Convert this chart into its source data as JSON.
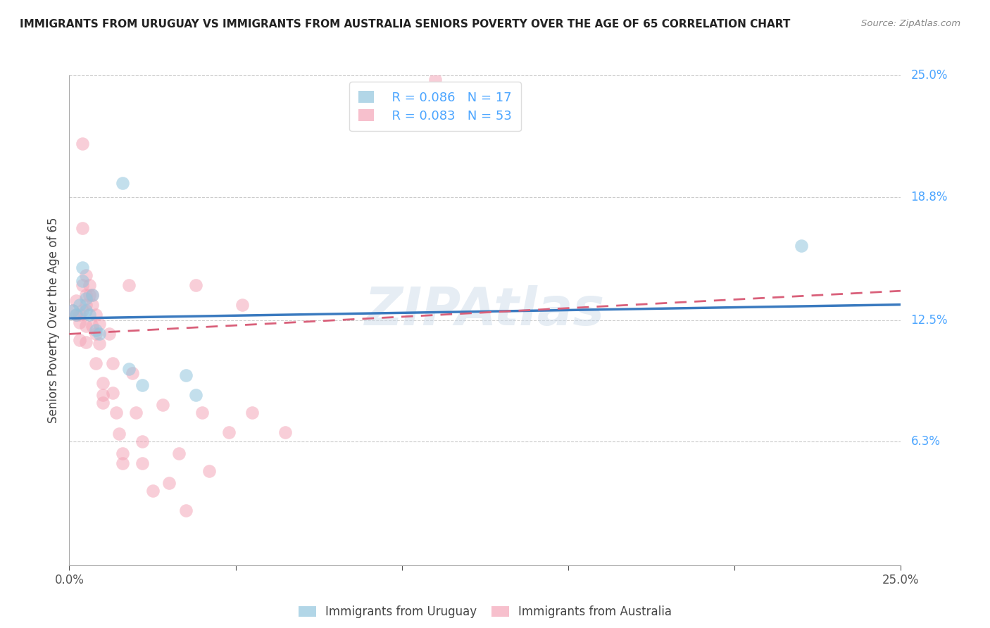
{
  "title": "IMMIGRANTS FROM URUGUAY VS IMMIGRANTS FROM AUSTRALIA SENIORS POVERTY OVER THE AGE OF 65 CORRELATION CHART",
  "source": "Source: ZipAtlas.com",
  "ylabel": "Seniors Poverty Over the Age of 65",
  "watermark": "ZIPAtlas",
  "xlim": [
    0.0,
    0.25
  ],
  "ylim": [
    0.0,
    0.25
  ],
  "ytick_labels": [
    "25.0%",
    "18.8%",
    "12.5%",
    "6.3%"
  ],
  "ytick_positions": [
    0.25,
    0.188,
    0.125,
    0.063
  ],
  "legend1_r": "R = 0.086",
  "legend1_n": "N = 17",
  "legend2_r": "R = 0.083",
  "legend2_n": "N = 53",
  "legend_color1": "#92c5de",
  "legend_color2": "#f4a6b8",
  "dot_color_uruguay": "#92c5de",
  "dot_color_australia": "#f4a6b8",
  "line_color_uruguay": "#3a7abf",
  "line_color_australia": "#d9607a",
  "grid_color": "#cccccc",
  "background_color": "#ffffff",
  "title_color": "#222222",
  "right_axis_color": "#4da6ff",
  "watermark_color": "#c8d8e8",
  "uruguay_x": [
    0.001,
    0.002,
    0.003,
    0.004,
    0.004,
    0.005,
    0.005,
    0.006,
    0.007,
    0.008,
    0.009,
    0.016,
    0.018,
    0.022,
    0.035,
    0.038,
    0.22
  ],
  "uruguay_y": [
    0.13,
    0.128,
    0.133,
    0.152,
    0.145,
    0.13,
    0.136,
    0.128,
    0.138,
    0.12,
    0.118,
    0.195,
    0.1,
    0.092,
    0.097,
    0.087,
    0.163
  ],
  "australia_x": [
    0.001,
    0.002,
    0.002,
    0.003,
    0.003,
    0.003,
    0.004,
    0.004,
    0.004,
    0.004,
    0.005,
    0.005,
    0.005,
    0.005,
    0.005,
    0.006,
    0.006,
    0.007,
    0.007,
    0.007,
    0.008,
    0.008,
    0.008,
    0.009,
    0.009,
    0.01,
    0.01,
    0.01,
    0.012,
    0.013,
    0.013,
    0.014,
    0.015,
    0.016,
    0.016,
    0.018,
    0.019,
    0.02,
    0.022,
    0.022,
    0.025,
    0.028,
    0.03,
    0.033,
    0.035,
    0.038,
    0.04,
    0.042,
    0.048,
    0.052,
    0.055,
    0.065,
    0.11
  ],
  "australia_y": [
    0.13,
    0.135,
    0.128,
    0.128,
    0.124,
    0.115,
    0.215,
    0.172,
    0.143,
    0.13,
    0.148,
    0.138,
    0.133,
    0.122,
    0.114,
    0.143,
    0.138,
    0.138,
    0.133,
    0.122,
    0.128,
    0.118,
    0.103,
    0.123,
    0.113,
    0.093,
    0.087,
    0.083,
    0.118,
    0.103,
    0.088,
    0.078,
    0.067,
    0.057,
    0.052,
    0.143,
    0.098,
    0.078,
    0.063,
    0.052,
    0.038,
    0.082,
    0.042,
    0.057,
    0.028,
    0.143,
    0.078,
    0.048,
    0.068,
    0.133,
    0.078,
    0.068,
    0.248
  ],
  "uruguay_trend_start": 0.126,
  "uruguay_trend_end": 0.133,
  "australia_trend_start": 0.118,
  "australia_trend_end": 0.14
}
